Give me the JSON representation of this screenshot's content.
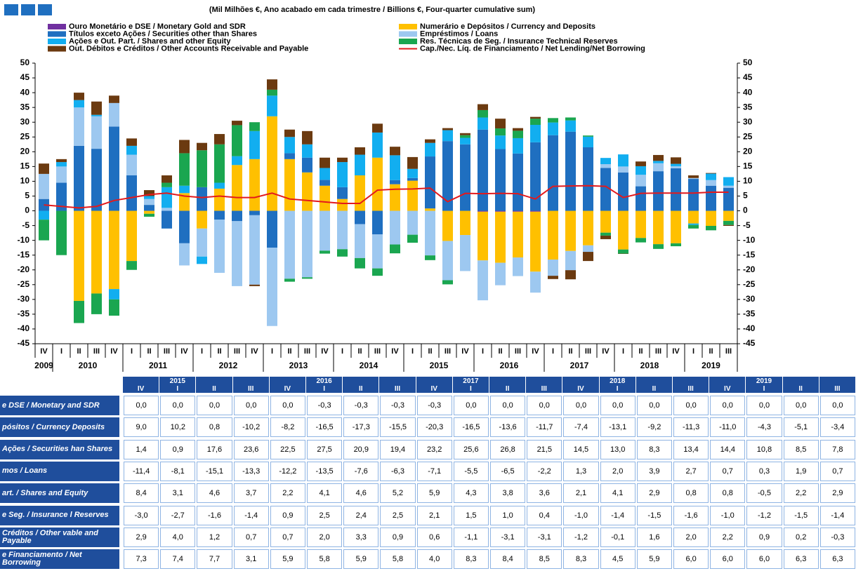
{
  "chart_data": {
    "type": "bar",
    "subtitle": "(Mil Milhões €, Ano acabado em cada trimestre / Billions €, Four-quarter cumulative sum)",
    "categories": [
      "IV",
      "I",
      "II",
      "III",
      "IV",
      "I",
      "II",
      "III",
      "IV",
      "I",
      "II",
      "III",
      "IV",
      "I",
      "II",
      "III",
      "IV",
      "I",
      "II",
      "III",
      "IV",
      "I",
      "II",
      "III",
      "IV",
      "I",
      "II",
      "III",
      "IV",
      "I",
      "II",
      "III",
      "IV",
      "I",
      "II",
      "III",
      "IV",
      "I",
      "II",
      "III"
    ],
    "years": [
      "2009",
      "2010",
      "2011",
      "2012",
      "2013",
      "2014",
      "2015",
      "2016",
      "2017",
      "2018",
      "2019"
    ],
    "ylim": [
      -45,
      50
    ],
    "yticks": [
      -45,
      -40,
      -35,
      -30,
      -25,
      -20,
      -15,
      -10,
      -5,
      0,
      5,
      10,
      15,
      20,
      25,
      30,
      35,
      40,
      45,
      50
    ],
    "y2lim": [
      -45,
      50
    ],
    "y2ticks": [
      -45,
      -40,
      -35,
      -30,
      -25,
      -20,
      -15,
      -10,
      -5,
      0,
      5,
      10,
      15,
      20,
      25,
      30,
      35,
      40,
      45,
      50
    ],
    "stacked": true,
    "series": [
      {
        "name": "Ouro Monetário e DSE / Monetary Gold and SDR",
        "color": "#7030a0",
        "values": [
          0,
          0,
          0,
          0,
          0,
          0,
          0,
          0,
          0,
          0,
          0,
          0,
          0,
          0,
          0,
          0,
          0,
          0,
          0,
          0,
          0,
          0,
          0,
          0,
          0,
          -0.3,
          -0.3,
          -0.3,
          -0.3,
          0,
          0,
          0,
          0,
          0,
          0,
          0,
          0,
          0,
          0,
          0
        ]
      },
      {
        "name": "Numerário e Depósitos / Currency and Deposits",
        "color": "#ffc000",
        "values": [
          0,
          0,
          -30.5,
          -28,
          -26.5,
          -17,
          -1,
          0,
          6,
          -6,
          7.5,
          15.5,
          17.5,
          32,
          17.5,
          13,
          8.5,
          4,
          12,
          18,
          9.0,
          10.2,
          0.8,
          -10.2,
          -8.2,
          -16.5,
          -17.3,
          -15.5,
          -20.3,
          -16.5,
          -13.6,
          -11.7,
          -7.4,
          -13.1,
          -9.2,
          -11.3,
          -11.0,
          -4.3,
          -5.1,
          -3.4
        ]
      },
      {
        "name": "Títulos exceto Ações / Securities other than Shares",
        "color": "#1f6fc0",
        "values": [
          4,
          9.5,
          22,
          21,
          28.5,
          12,
          2,
          -6,
          -11,
          8,
          -3,
          -3.5,
          -1.5,
          -12.5,
          2,
          5,
          2,
          4,
          -4.5,
          -8,
          1.4,
          0.9,
          17.6,
          23.6,
          22.5,
          27.5,
          20.9,
          19.4,
          23.2,
          25.6,
          26.8,
          21.5,
          14.5,
          13.0,
          8.3,
          13.4,
          14.4,
          10.8,
          8.5,
          7.8
        ]
      },
      {
        "name": "Empréstimos / Loans",
        "color": "#9dc8f0",
        "values": [
          8.5,
          5.5,
          13,
          11,
          8,
          7,
          2,
          1,
          -7.5,
          -9.5,
          -18,
          -22,
          -23.5,
          -26.5,
          -23,
          -22.5,
          -13.5,
          -13,
          -11.5,
          -11.5,
          -11.4,
          -8.1,
          -15.1,
          -13.3,
          -12.2,
          -13.5,
          -7.6,
          -6.3,
          -7.1,
          -5.5,
          -6.5,
          -2.2,
          1.3,
          2.0,
          3.9,
          2.7,
          0.7,
          0.3,
          1.9,
          0.7
        ]
      },
      {
        "name": "Ações e Out. Part. / Shares and other Equity",
        "color": "#12aef0",
        "values": [
          -3,
          1.5,
          2.5,
          0.5,
          -3.5,
          3,
          1,
          7,
          2.5,
          -2.5,
          2,
          3,
          9.5,
          7,
          5.5,
          4.5,
          4,
          8.5,
          7,
          8.5,
          8.4,
          3.1,
          4.6,
          3.7,
          2.2,
          4.1,
          4.6,
          5.2,
          5.9,
          4.3,
          3.8,
          3.6,
          2.1,
          4.1,
          2.9,
          0.8,
          0.8,
          -0.5,
          2.2,
          2.9
        ]
      },
      {
        "name": "Res. Técnicas de Seg. / Insurance Technical Reserves",
        "color": "#1aa650",
        "values": [
          -7,
          -15,
          -7.5,
          -7,
          -5.5,
          -3,
          -1,
          1.5,
          11,
          12.5,
          13,
          10.5,
          3,
          2,
          -1,
          -0.5,
          -1,
          -2.5,
          -3.5,
          -2.5,
          -3.0,
          -2.7,
          -1.6,
          -1.4,
          0.9,
          2.5,
          2.4,
          2.5,
          2.1,
          1.5,
          1.0,
          0.4,
          -1.0,
          -1.4,
          -1.5,
          -1.6,
          -1.0,
          -1.2,
          -1.5,
          -1.4
        ]
      },
      {
        "name": "Out. Débitos e Créditos / Other Accounts Receivable and Payable",
        "color": "#6b3a10",
        "values": [
          3.5,
          1,
          2.5,
          4.5,
          2.5,
          2.5,
          2,
          2.5,
          4.5,
          2.5,
          3.5,
          1.5,
          -0.5,
          3.5,
          2.5,
          4.5,
          3.5,
          1.5,
          2.5,
          3,
          2.9,
          4.0,
          1.2,
          0.7,
          0.7,
          2.0,
          3.3,
          0.9,
          0.6,
          -1.1,
          -3.1,
          -3.1,
          -1.2,
          -0.1,
          1.6,
          2.0,
          2.2,
          0.9,
          0.2,
          -0.3
        ]
      },
      {
        "name": "Cap./Nec. Líq. de Financiamento / Net Lending/Net Borrowing",
        "color": "#e3191c",
        "type": "line",
        "values": [
          2,
          1.5,
          1,
          1.5,
          3.5,
          4.5,
          5.5,
          6,
          5,
          4.5,
          5,
          4.5,
          4.5,
          6,
          4,
          3.5,
          3,
          2.5,
          2.5,
          7,
          7.3,
          7.4,
          7.7,
          3.1,
          5.9,
          5.8,
          5.9,
          5.8,
          4.0,
          8.3,
          8.4,
          8.5,
          8.3,
          4.5,
          5.9,
          6.0,
          6.0,
          6.0,
          6.3,
          6.3
        ]
      }
    ]
  },
  "table": {
    "year_row": [
      null,
      "2015",
      null,
      null,
      null,
      "2016",
      null,
      null,
      null,
      "2017",
      null,
      null,
      null,
      "2018",
      null,
      null,
      null,
      "2019",
      null,
      null
    ],
    "quarter_row": [
      "IV",
      "I",
      "II",
      "III",
      "IV",
      "I",
      "II",
      "III",
      "IV",
      "I",
      "II",
      "III",
      "IV",
      "I",
      "II",
      "III",
      "IV",
      "I",
      "II",
      "III"
    ],
    "rows": [
      {
        "label": "e DSE / Monetary and SDR",
        "cells": [
          "0,0",
          "0,0",
          "0,0",
          "0,0",
          "0,0",
          "-0,3",
          "-0,3",
          "-0,3",
          "-0,3",
          "0,0",
          "0,0",
          "0,0",
          "0,0",
          "0,0",
          "0,0",
          "0,0",
          "0,0",
          "0,0",
          "0,0",
          "0,0"
        ]
      },
      {
        "label": "pósitos / Currency Deposits",
        "cells": [
          "9,0",
          "10,2",
          "0,8",
          "-10,2",
          "-8,2",
          "-16,5",
          "-17,3",
          "-15,5",
          "-20,3",
          "-16,5",
          "-13,6",
          "-11,7",
          "-7,4",
          "-13,1",
          "-9,2",
          "-11,3",
          "-11,0",
          "-4,3",
          "-5,1",
          "-3,4"
        ]
      },
      {
        "label": "Ações / Securities han Shares",
        "cells": [
          "1,4",
          "0,9",
          "17,6",
          "23,6",
          "22,5",
          "27,5",
          "20,9",
          "19,4",
          "23,2",
          "25,6",
          "26,8",
          "21,5",
          "14,5",
          "13,0",
          "8,3",
          "13,4",
          "14,4",
          "10,8",
          "8,5",
          "7,8"
        ]
      },
      {
        "label": "mos / Loans",
        "cells": [
          "-11,4",
          "-8,1",
          "-15,1",
          "-13,3",
          "-12,2",
          "-13,5",
          "-7,6",
          "-6,3",
          "-7,1",
          "-5,5",
          "-6,5",
          "-2,2",
          "1,3",
          "2,0",
          "3,9",
          "2,7",
          "0,7",
          "0,3",
          "1,9",
          "0,7"
        ]
      },
      {
        "label": "art. / Shares and Equity",
        "cells": [
          "8,4",
          "3,1",
          "4,6",
          "3,7",
          "2,2",
          "4,1",
          "4,6",
          "5,2",
          "5,9",
          "4,3",
          "3,8",
          "3,6",
          "2,1",
          "4,1",
          "2,9",
          "0,8",
          "0,8",
          "-0,5",
          "2,2",
          "2,9"
        ]
      },
      {
        "label": "e Seg. / Insurance l Reserves",
        "cells": [
          "-3,0",
          "-2,7",
          "-1,6",
          "-1,4",
          "0,9",
          "2,5",
          "2,4",
          "2,5",
          "2,1",
          "1,5",
          "1,0",
          "0,4",
          "-1,0",
          "-1,4",
          "-1,5",
          "-1,6",
          "-1,0",
          "-1,2",
          "-1,5",
          "-1,4"
        ]
      },
      {
        "label": "Créditos / Other vable and Payable",
        "cells": [
          "2,9",
          "4,0",
          "1,2",
          "0,7",
          "0,7",
          "2,0",
          "3,3",
          "0,9",
          "0,6",
          "-1,1",
          "-3,1",
          "-3,1",
          "-1,2",
          "-0,1",
          "1,6",
          "2,0",
          "2,2",
          "0,9",
          "0,2",
          "-0,3"
        ]
      },
      {
        "label": "e Financiamento / Net Borrowing",
        "cells": [
          "7,3",
          "7,4",
          "7,7",
          "3,1",
          "5,9",
          "5,8",
          "5,9",
          "5,8",
          "4,0",
          "8,3",
          "8,4",
          "8,5",
          "8,3",
          "4,5",
          "5,9",
          "6,0",
          "6,0",
          "6,0",
          "6,3",
          "6,3"
        ]
      }
    ]
  }
}
